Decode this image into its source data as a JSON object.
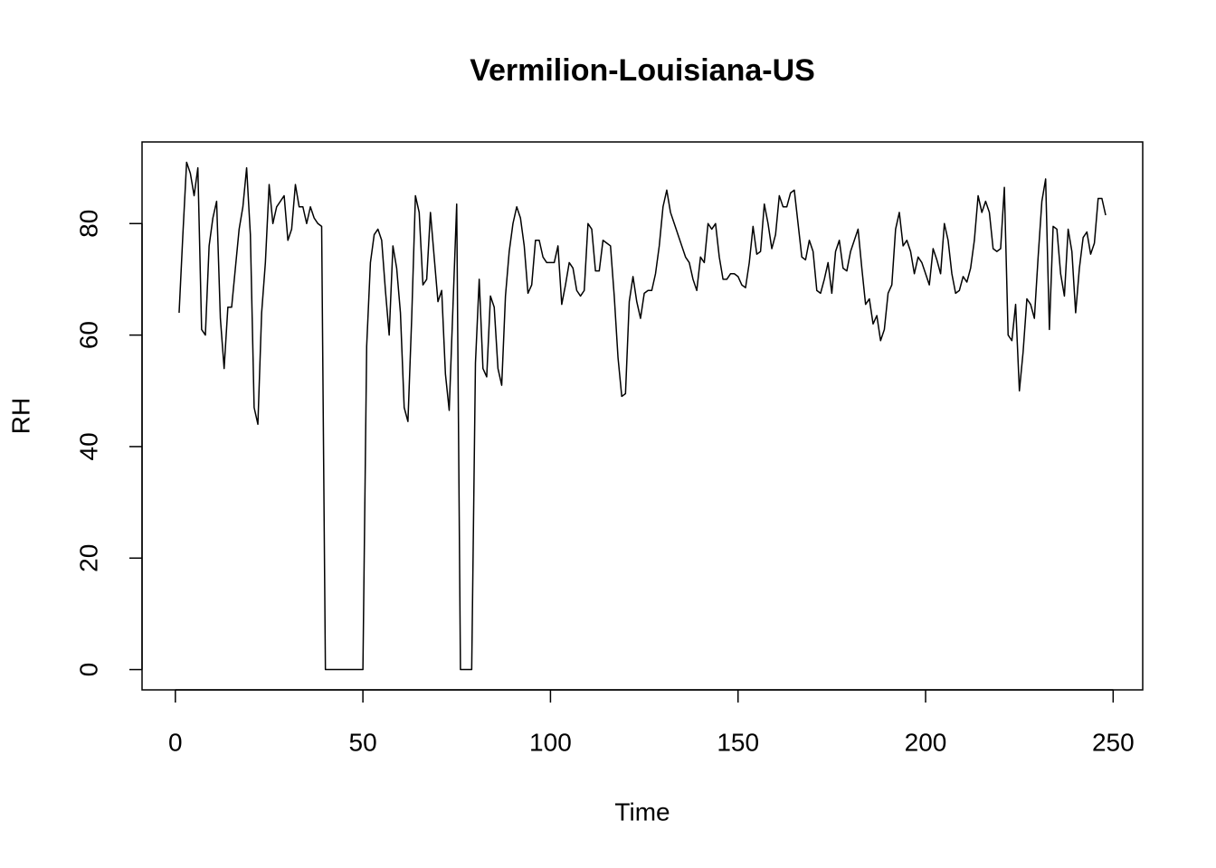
{
  "chart_data": {
    "type": "line",
    "title": "Vermilion-Louisiana-US",
    "x_label": "Time",
    "y_label": "RH",
    "x": [
      1,
      2,
      3,
      4,
      5,
      6,
      7,
      8,
      9,
      10,
      11,
      12,
      13,
      14,
      15,
      16,
      17,
      18,
      19,
      20,
      21,
      22,
      23,
      24,
      25,
      26,
      27,
      28,
      29,
      30,
      31,
      32,
      33,
      34,
      35,
      36,
      37,
      38,
      39,
      40,
      41,
      42,
      43,
      44,
      45,
      46,
      47,
      48,
      49,
      50,
      51,
      52,
      53,
      54,
      55,
      56,
      57,
      58,
      59,
      60,
      61,
      62,
      63,
      64,
      65,
      66,
      67,
      68,
      69,
      70,
      71,
      72,
      73,
      74,
      75,
      76,
      77,
      78,
      79,
      80,
      81,
      82,
      83,
      84,
      85,
      86,
      87,
      88,
      89,
      90,
      91,
      92,
      93,
      94,
      95,
      96,
      97,
      98,
      99,
      100,
      101,
      102,
      103,
      104,
      105,
      106,
      107,
      108,
      109,
      110,
      111,
      112,
      113,
      114,
      115,
      116,
      117,
      118,
      119,
      120,
      121,
      122,
      123,
      124,
      125,
      126,
      127,
      128,
      129,
      130,
      131,
      132,
      133,
      134,
      135,
      136,
      137,
      138,
      139,
      140,
      141,
      142,
      143,
      144,
      145,
      146,
      147,
      148,
      149,
      150,
      151,
      152,
      153,
      154,
      155,
      156,
      157,
      158,
      159,
      160,
      161,
      162,
      163,
      164,
      165,
      166,
      167,
      168,
      169,
      170,
      171,
      172,
      173,
      174,
      175,
      176,
      177,
      178,
      179,
      180,
      181,
      182,
      183,
      184,
      185,
      186,
      187,
      188,
      189,
      190,
      191,
      192,
      193,
      194,
      195,
      196,
      197,
      198,
      199,
      200,
      201,
      202,
      203,
      204,
      205,
      206,
      207,
      208,
      209,
      210,
      211,
      212,
      213,
      214,
      215,
      216,
      217,
      218,
      219,
      220,
      221,
      222,
      223,
      224,
      225,
      226,
      227,
      228,
      229,
      230,
      231,
      232,
      233,
      234,
      235,
      236,
      237,
      238,
      239,
      240,
      241,
      242,
      243,
      244,
      245,
      246,
      247,
      248
    ],
    "values": [
      64,
      78,
      91,
      89,
      85,
      90,
      61,
      60,
      76,
      81,
      84,
      63,
      54,
      65,
      65,
      72,
      79,
      83,
      90,
      78,
      47,
      44,
      64,
      73,
      87,
      80,
      83,
      84,
      85,
      77,
      79,
      87,
      83,
      83,
      80,
      83,
      81,
      80,
      79.5,
      0,
      0,
      0,
      0,
      0,
      0,
      0,
      0,
      0,
      0,
      0,
      58,
      73,
      78,
      79,
      77,
      68,
      60,
      76,
      72,
      64,
      47,
      44.5,
      63,
      85,
      82,
      69,
      70,
      82,
      74,
      66,
      68,
      53,
      46.5,
      65,
      83.5,
      0,
      0,
      0,
      0,
      55,
      70,
      54,
      52.5,
      67,
      65,
      54,
      51,
      67,
      75,
      80,
      83,
      81,
      76,
      67.5,
      69,
      77,
      77,
      74,
      73,
      73,
      73,
      76,
      65.5,
      69,
      73,
      72,
      68,
      67,
      68,
      80,
      79,
      71.5,
      71.5,
      77,
      76.5,
      76,
      67,
      56,
      49,
      49.5,
      66,
      70.5,
      66,
      63,
      67.5,
      68,
      68,
      71,
      76,
      83,
      86,
      82,
      80,
      78,
      76,
      74,
      73,
      70,
      68,
      74,
      73,
      80,
      79,
      80,
      74,
      70,
      70,
      71,
      71,
      70.5,
      69,
      68.5,
      73,
      79.5,
      74.5,
      75,
      83.5,
      80,
      75.5,
      78,
      85,
      83,
      83,
      85.5,
      86,
      80,
      74,
      73.5,
      77,
      75,
      68,
      67.5,
      70,
      73,
      67.5,
      75,
      77,
      72,
      71.5,
      75,
      77,
      79,
      72,
      65.5,
      66.5,
      62,
      63.5,
      59,
      61,
      67.5,
      69,
      79,
      82,
      76,
      77,
      75,
      71,
      74,
      73,
      71,
      69,
      75.5,
      73.5,
      71,
      80,
      77,
      71,
      67.5,
      68,
      70.5,
      69.5,
      72,
      77,
      85,
      82,
      84,
      82,
      75.5,
      75,
      75.5,
      86.5,
      60,
      59,
      65.5,
      50,
      57,
      66.5,
      65.5,
      63,
      74,
      84,
      88,
      61,
      79.5,
      79,
      71,
      67,
      79,
      75,
      64,
      72,
      77.5,
      78.5,
      74.5,
      76.5,
      84.5,
      84.5,
      81.5
    ],
    "color": "#000000",
    "xlim": [
      -8.88,
      257.88
    ],
    "ylim": [
      -3.64,
      94.64
    ],
    "xticks": [
      0,
      50,
      100,
      150,
      200,
      250
    ],
    "yticks": [
      0,
      20,
      40,
      60,
      80
    ]
  }
}
